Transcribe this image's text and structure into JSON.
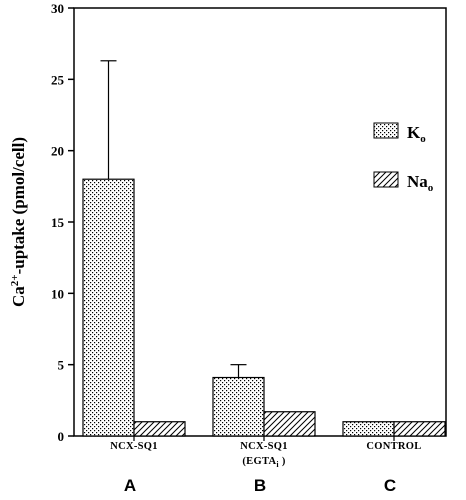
{
  "chart_data": {
    "type": "bar",
    "ylabel": {
      "pre": "Ca",
      "sup": "2+",
      "post": "-uptake  (pmol/cell)"
    },
    "ylim": [
      0,
      30
    ],
    "yticks": [
      0,
      5,
      10,
      15,
      20,
      25,
      30
    ],
    "categories": [
      {
        "line1": "NCX-SQ1",
        "line2": "",
        "panel": "A"
      },
      {
        "line1": "NCX-SQ1",
        "line2": "(EGTA",
        "line2_sub": "i",
        "line2_end": " )",
        "panel": "B"
      },
      {
        "line1": "CONTROL",
        "line2": "",
        "panel": "C"
      }
    ],
    "series": [
      {
        "name": "K",
        "name_sub": "o",
        "pattern": "stipple",
        "values": [
          18.0,
          4.1,
          1.0
        ],
        "errors": [
          8.3,
          0.9,
          null
        ]
      },
      {
        "name": "Na",
        "name_sub": "o",
        "pattern": "hatch",
        "values": [
          1.0,
          1.7,
          1.0
        ],
        "errors": [
          null,
          null,
          null
        ]
      }
    ],
    "legend_position": "top-right"
  }
}
